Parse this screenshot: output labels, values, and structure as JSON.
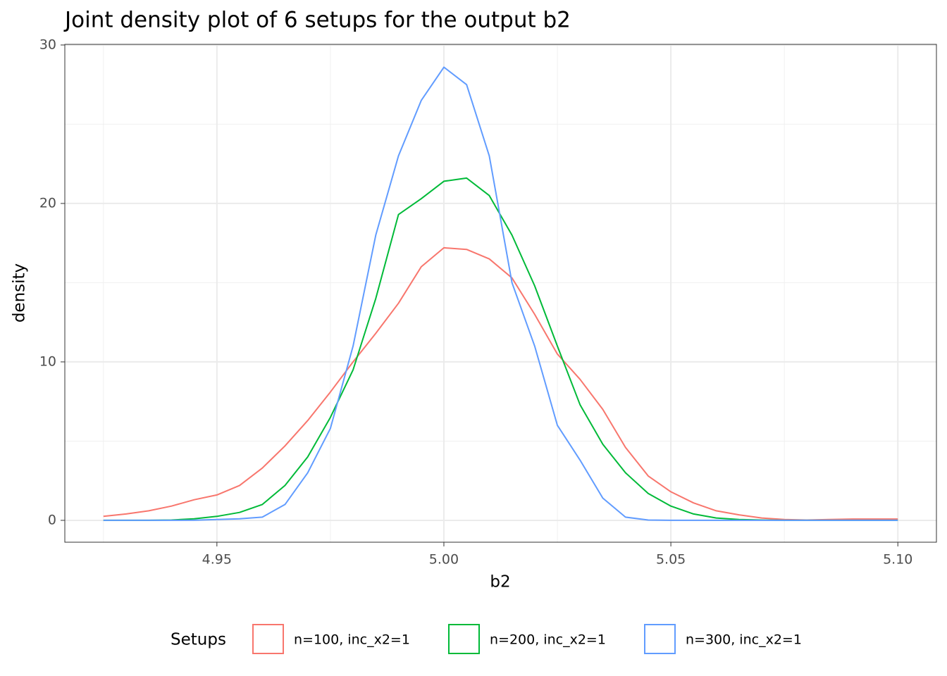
{
  "chart_data": {
    "type": "line",
    "title": "Joint density plot of 6 setups for the output b2",
    "x_label": "b2",
    "y_label": "density",
    "legend_title": "Setups",
    "legend_position": "bottom",
    "grid": true,
    "xlim": [
      4.9165,
      5.1085
    ],
    "ylim": [
      -1.38,
      30.04
    ],
    "xticks": [
      {
        "value": 4.95,
        "label": "4.95"
      },
      {
        "value": 5.0,
        "label": "5.00"
      },
      {
        "value": 5.05,
        "label": "5.05"
      },
      {
        "value": 5.1,
        "label": "5.10"
      }
    ],
    "xminor": [
      4.925,
      4.975,
      5.025,
      5.075
    ],
    "yticks": [
      0,
      10,
      20,
      30
    ],
    "yminor": [
      5,
      15,
      25
    ],
    "x": [
      4.925,
      4.93,
      4.935,
      4.94,
      4.945,
      4.95,
      4.955,
      4.96,
      4.965,
      4.97,
      4.975,
      4.98,
      4.985,
      4.99,
      4.995,
      5.0,
      5.005,
      5.01,
      5.015,
      5.02,
      5.025,
      5.03,
      5.035,
      5.04,
      5.045,
      5.05,
      5.055,
      5.06,
      5.065,
      5.07,
      5.075,
      5.08,
      5.085,
      5.09,
      5.095,
      5.1
    ],
    "series": [
      {
        "name": "n=100, inc_x2=1",
        "color": "#F8766D",
        "values": [
          0.25,
          0.4,
          0.6,
          0.9,
          1.3,
          1.6,
          2.2,
          3.3,
          4.7,
          6.3,
          8.1,
          10.0,
          11.8,
          13.7,
          16.0,
          17.2,
          17.1,
          16.5,
          15.3,
          13.0,
          10.5,
          8.9,
          7.0,
          4.6,
          2.8,
          1.8,
          1.1,
          0.6,
          0.35,
          0.15,
          0.05,
          0.02,
          0.05,
          0.08,
          0.08,
          0.08
        ]
      },
      {
        "name": "n=200, inc_x2=1",
        "color": "#00BA38",
        "values": [
          0,
          0,
          0,
          0.02,
          0.1,
          0.25,
          0.5,
          1.0,
          2.2,
          4.0,
          6.5,
          9.5,
          14.0,
          19.3,
          20.3,
          21.4,
          21.6,
          20.5,
          18.0,
          14.8,
          11.0,
          7.3,
          4.8,
          3.0,
          1.7,
          0.9,
          0.4,
          0.15,
          0.05,
          0.02,
          0,
          0,
          0,
          0,
          0,
          0
        ]
      },
      {
        "name": "n=300, inc_x2=1",
        "color": "#619CFF",
        "values": [
          0,
          0,
          0,
          0,
          0.01,
          0.05,
          0.1,
          0.2,
          1.0,
          3.0,
          5.8,
          11.0,
          18.0,
          23.0,
          26.5,
          28.6,
          27.5,
          23.0,
          15.0,
          11.0,
          6.0,
          3.8,
          1.4,
          0.2,
          0.02,
          0,
          0,
          0,
          0,
          0,
          0,
          0,
          0,
          0,
          0,
          0
        ]
      }
    ]
  }
}
